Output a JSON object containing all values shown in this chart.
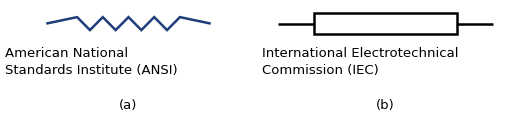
{
  "ansi_color": "#1f3d7a",
  "iec_color": "#000000",
  "bg_color": "#ffffff",
  "label_a": "American National\nStandards Institute (ANSI)",
  "label_b": "International Electrotechnical\nCommission (IEC)",
  "caption_a": "(a)",
  "caption_b": "(b)",
  "font_size": 9.5,
  "caption_font_size": 9.5,
  "fig_width": 5.14,
  "fig_height": 1.18,
  "dpi": 100
}
